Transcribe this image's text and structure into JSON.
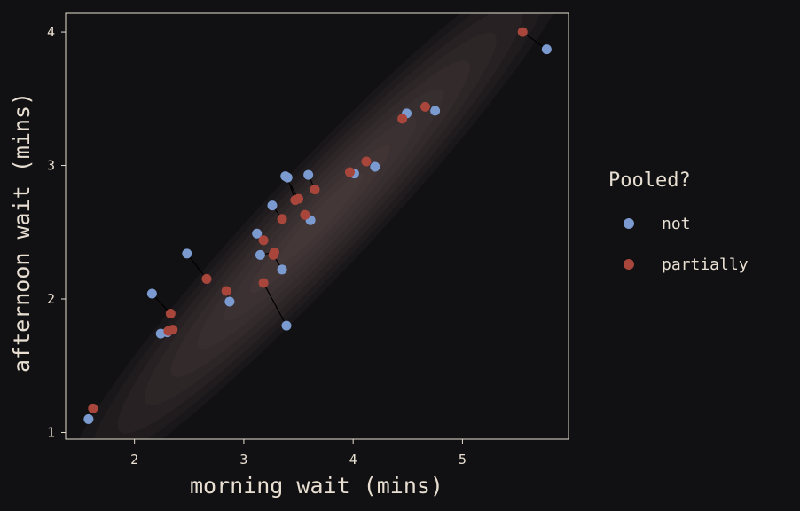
{
  "chart_data": {
    "type": "scatter",
    "title": "",
    "xlabel": "morning wait (mins)",
    "ylabel": "afternoon wait (mins)",
    "xlim": [
      1.37,
      5.97
    ],
    "ylim": [
      0.95,
      4.14
    ],
    "xticks": [
      2,
      3,
      4,
      5
    ],
    "yticks": [
      1,
      2,
      3,
      4
    ],
    "x_tick_labels": [
      "2",
      "3",
      "4",
      "5"
    ],
    "y_tick_labels": [
      "1",
      "2",
      "3",
      "4"
    ],
    "legend": {
      "title": "Pooled?",
      "position": "right",
      "entries": [
        {
          "label": "not",
          "color": "#7b9bd0"
        },
        {
          "label": "partially",
          "color": "#a9463c"
        }
      ]
    },
    "colors": {
      "background": "#111113",
      "panel_border": "#e8dfd2",
      "text": "#e8dfd2",
      "connector": "#000000",
      "density": "#6a5a55"
    },
    "density": {
      "center": [
        3.7,
        2.6
      ],
      "sd_x": 0.9,
      "sd_y": 0.78,
      "correlation": 0.96,
      "levels": 9
    },
    "series": [
      {
        "name": "not",
        "color": "#7b9bd0",
        "points": [
          [
            5.77,
            3.87
          ],
          [
            4.75,
            3.41
          ],
          [
            4.49,
            3.39
          ],
          [
            4.2,
            2.99
          ],
          [
            4.01,
            2.94
          ],
          [
            3.59,
            2.93
          ],
          [
            3.38,
            2.92
          ],
          [
            3.4,
            2.91
          ],
          [
            3.26,
            2.7
          ],
          [
            3.61,
            2.59
          ],
          [
            3.12,
            2.49
          ],
          [
            3.15,
            2.33
          ],
          [
            3.35,
            2.22
          ],
          [
            2.48,
            2.34
          ],
          [
            2.16,
            2.04
          ],
          [
            2.87,
            1.98
          ],
          [
            2.3,
            1.75
          ],
          [
            2.24,
            1.74
          ],
          [
            3.39,
            1.8
          ],
          [
            1.58,
            1.1
          ]
        ]
      },
      {
        "name": "partially",
        "color": "#a9463c",
        "points": [
          [
            5.55,
            4.0
          ],
          [
            4.66,
            3.44
          ],
          [
            4.45,
            3.35
          ],
          [
            4.12,
            3.03
          ],
          [
            3.97,
            2.95
          ],
          [
            3.65,
            2.82
          ],
          [
            3.5,
            2.75
          ],
          [
            3.47,
            2.74
          ],
          [
            3.35,
            2.6
          ],
          [
            3.56,
            2.63
          ],
          [
            3.18,
            2.44
          ],
          [
            3.28,
            2.35
          ],
          [
            3.27,
            2.33
          ],
          [
            2.66,
            2.15
          ],
          [
            2.33,
            1.89
          ],
          [
            2.84,
            2.06
          ],
          [
            2.35,
            1.77
          ],
          [
            2.31,
            1.76
          ],
          [
            3.18,
            2.12
          ],
          [
            1.62,
            1.18
          ]
        ]
      }
    ]
  }
}
